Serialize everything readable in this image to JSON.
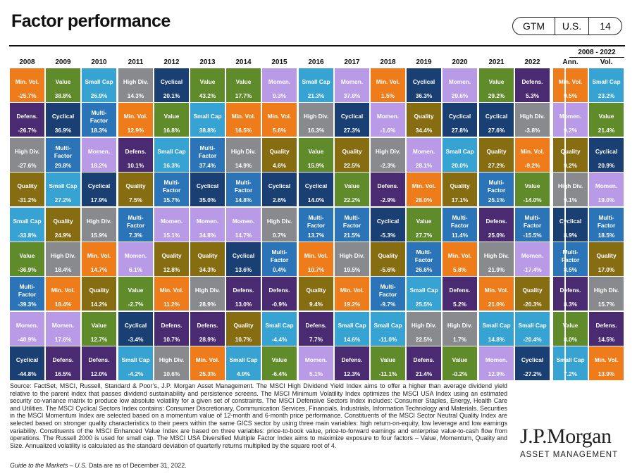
{
  "header": {
    "title": "Factor performance",
    "badge": [
      "GTM",
      "U.S.",
      "14"
    ]
  },
  "palette": {
    "Min. Vol.": "#ee7c1a",
    "Value": "#5f8b2b",
    "Small Cap": "#37a3d3",
    "High Div.": "#898a8d",
    "Cyclical": "#1a3f73",
    "Momen.": "#b99ae6",
    "Defens.": "#4a2a71",
    "Multi-Factor": "#2a74b7",
    "Quality": "#876d12"
  },
  "chart_data": {
    "type": "table",
    "title": "Factor performance",
    "range_label": "2008 - 2022",
    "columns": [
      "2008",
      "2009",
      "2010",
      "2011",
      "2012",
      "2013",
      "2014",
      "2015",
      "2016",
      "2017",
      "2018",
      "2019",
      "2020",
      "2021",
      "2022",
      "Ann.",
      "Vol."
    ],
    "rows": [
      [
        [
          "Min. Vol.",
          "-25.7%"
        ],
        [
          "Value",
          "38.8%"
        ],
        [
          "Small Cap",
          "26.9%"
        ],
        [
          "High Div.",
          "14.3%"
        ],
        [
          "Cyclical",
          "20.1%"
        ],
        [
          "Value",
          "43.2%"
        ],
        [
          "Value",
          "17.7%"
        ],
        [
          "Momen.",
          "9.3%"
        ],
        [
          "Small Cap",
          "21.3%"
        ],
        [
          "Momen.",
          "37.8%"
        ],
        [
          "Min. Vol.",
          "1.5%"
        ],
        [
          "Cyclical",
          "36.3%"
        ],
        [
          "Momen.",
          "29.6%"
        ],
        [
          "Value",
          "29.2%"
        ],
        [
          "Defens.",
          "5.3%"
        ],
        [
          "Min. Vol.",
          "9.5%"
        ],
        [
          "Small Cap",
          "23.2%"
        ]
      ],
      [
        [
          "Defens.",
          "-26.7%"
        ],
        [
          "Cyclical",
          "36.9%"
        ],
        [
          "Multi-Factor",
          "18.3%"
        ],
        [
          "Min. Vol.",
          "12.9%"
        ],
        [
          "Value",
          "16.8%"
        ],
        [
          "Small Cap",
          "38.8%"
        ],
        [
          "Min. Vol.",
          "16.5%"
        ],
        [
          "Min. Vol.",
          "5.6%"
        ],
        [
          "High Div.",
          "16.3%"
        ],
        [
          "Cyclical",
          "27.3%"
        ],
        [
          "Momen.",
          "-1.6%"
        ],
        [
          "Quality",
          "34.4%"
        ],
        [
          "Cyclical",
          "27.8%"
        ],
        [
          "Cyclical",
          "27.6%"
        ],
        [
          "High Div.",
          "-3.8%"
        ],
        [
          "Momen.",
          "9.2%"
        ],
        [
          "Value",
          "21.4%"
        ]
      ],
      [
        [
          "High Div.",
          "-27.6%"
        ],
        [
          "Multi-Factor",
          "29.8%"
        ],
        [
          "Momen.",
          "18.2%"
        ],
        [
          "Defens.",
          "10.1%"
        ],
        [
          "Small Cap",
          "16.3%"
        ],
        [
          "Multi-Factor",
          "37.4%"
        ],
        [
          "High Div.",
          "14.9%"
        ],
        [
          "Quality",
          "4.6%"
        ],
        [
          "Value",
          "15.9%"
        ],
        [
          "Quality",
          "22.5%"
        ],
        [
          "High Div.",
          "-2.3%"
        ],
        [
          "Momen.",
          "28.1%"
        ],
        [
          "Small Cap",
          "20.0%"
        ],
        [
          "Quality",
          "27.2%"
        ],
        [
          "Min. Vol.",
          "-9.2%"
        ],
        [
          "Quality",
          "9.2%"
        ],
        [
          "Cyclical",
          "20.9%"
        ]
      ],
      [
        [
          "Quality",
          "-31.2%"
        ],
        [
          "Small Cap",
          "27.2%"
        ],
        [
          "Cyclical",
          "17.9%"
        ],
        [
          "Quality",
          "7.5%"
        ],
        [
          "Multi-Factor",
          "15.7%"
        ],
        [
          "Cyclical",
          "35.0%"
        ],
        [
          "Multi-Factor",
          "14.8%"
        ],
        [
          "Cyclical",
          "2.6%"
        ],
        [
          "Cyclical",
          "14.0%"
        ],
        [
          "Value",
          "22.2%"
        ],
        [
          "Defens.",
          "-2.9%"
        ],
        [
          "Min. Vol.",
          "28.0%"
        ],
        [
          "Quality",
          "17.1%"
        ],
        [
          "Multi-Factor",
          "25.1%"
        ],
        [
          "Value",
          "-14.0%"
        ],
        [
          "High Div.",
          "9.1%"
        ],
        [
          "Momen.",
          "19.0%"
        ]
      ],
      [
        [
          "Small Cap",
          "-33.8%"
        ],
        [
          "Quality",
          "24.9%"
        ],
        [
          "High Div.",
          "15.9%"
        ],
        [
          "Multi-Factor",
          "7.3%"
        ],
        [
          "Momen.",
          "15.1%"
        ],
        [
          "Momen.",
          "34.8%"
        ],
        [
          "Momen.",
          "14.7%"
        ],
        [
          "High Div.",
          "0.7%"
        ],
        [
          "Multi-Factor",
          "13.7%"
        ],
        [
          "Multi-Factor",
          "21.5%"
        ],
        [
          "Cyclical",
          "-5.3%"
        ],
        [
          "Value",
          "27.7%"
        ],
        [
          "Multi-Factor",
          "11.4%"
        ],
        [
          "Defens.",
          "25.0%"
        ],
        [
          "Multi-Factor",
          "-15.5%"
        ],
        [
          "Cyclical",
          "8.9%"
        ],
        [
          "Multi-Factor",
          "18.5%"
        ]
      ],
      [
        [
          "Value",
          "-36.9%"
        ],
        [
          "High Div.",
          "18.4%"
        ],
        [
          "Min. Vol.",
          "14.7%"
        ],
        [
          "Momen.",
          "6.1%"
        ],
        [
          "Quality",
          "12.8%"
        ],
        [
          "Quality",
          "34.3%"
        ],
        [
          "Cyclical",
          "13.6%"
        ],
        [
          "Multi-Factor",
          "0.4%"
        ],
        [
          "Min. Vol.",
          "10.7%"
        ],
        [
          "High Div.",
          "19.5%"
        ],
        [
          "Quality",
          "-5.6%"
        ],
        [
          "Multi-Factor",
          "26.6%"
        ],
        [
          "Min. Vol.",
          "5.8%"
        ],
        [
          "High Div.",
          "21.9%"
        ],
        [
          "Momen.",
          "-17.4%"
        ],
        [
          "Multi-Factor",
          "8.5%"
        ],
        [
          "Quality",
          "17.0%"
        ]
      ],
      [
        [
          "Multi-Factor",
          "-39.3%"
        ],
        [
          "Min. Vol.",
          "18.4%"
        ],
        [
          "Quality",
          "14.2%"
        ],
        [
          "Value",
          "-2.7%"
        ],
        [
          "Min. Vol.",
          "11.2%"
        ],
        [
          "High Div.",
          "28.9%"
        ],
        [
          "Defens.",
          "13.0%"
        ],
        [
          "Defens.",
          "-0.9%"
        ],
        [
          "Quality",
          "9.4%"
        ],
        [
          "Min. Vol.",
          "19.2%"
        ],
        [
          "Multi-Factor",
          "-9.7%"
        ],
        [
          "Small Cap",
          "25.5%"
        ],
        [
          "Defens.",
          "5.2%"
        ],
        [
          "Min. Vol.",
          "21.0%"
        ],
        [
          "Quality",
          "-20.3%"
        ],
        [
          "Defens.",
          "8.3%"
        ],
        [
          "High Div.",
          "15.7%"
        ]
      ],
      [
        [
          "Momen.",
          "-40.9%"
        ],
        [
          "Momen.",
          "17.6%"
        ],
        [
          "Value",
          "12.7%"
        ],
        [
          "Cyclical",
          "-3.4%"
        ],
        [
          "Defens.",
          "10.7%"
        ],
        [
          "Defens.",
          "28.9%"
        ],
        [
          "Quality",
          "10.7%"
        ],
        [
          "Small Cap",
          "-4.4%"
        ],
        [
          "Defens.",
          "7.7%"
        ],
        [
          "Small Cap",
          "14.6%"
        ],
        [
          "Small Cap",
          "-11.0%"
        ],
        [
          "High Div.",
          "22.5%"
        ],
        [
          "High Div.",
          "1.7%"
        ],
        [
          "Small Cap",
          "14.8%"
        ],
        [
          "Small Cap",
          "-20.4%"
        ],
        [
          "Value",
          "8.0%"
        ],
        [
          "Defens.",
          "14.5%"
        ]
      ],
      [
        [
          "Cyclical",
          "-44.8%"
        ],
        [
          "Defens.",
          "16.5%"
        ],
        [
          "Defens.",
          "12.0%"
        ],
        [
          "Small Cap",
          "-4.2%"
        ],
        [
          "High Div.",
          "10.6%"
        ],
        [
          "Min. Vol.",
          "25.3%"
        ],
        [
          "Small Cap",
          "4.9%"
        ],
        [
          "Value",
          "-6.4%"
        ],
        [
          "Momen.",
          "5.1%"
        ],
        [
          "Defens.",
          "12.3%"
        ],
        [
          "Value",
          "-11.1%"
        ],
        [
          "Defens.",
          "21.4%"
        ],
        [
          "Value",
          "-0.2%"
        ],
        [
          "Momen.",
          "12.9%"
        ],
        [
          "Cyclical",
          "-27.2%"
        ],
        [
          "Small Cap",
          "7.2%"
        ],
        [
          "Min. Vol.",
          "13.9%"
        ]
      ]
    ]
  },
  "footer": {
    "source": "Source: FactSet, MSCI, Russell, Standard & Poor’s, J.P. Morgan Asset Management. The MSCI High Dividend Yield Index aims to offer a higher than average dividend yield relative to the parent index that passes dividend sustainability and persistence screens. The MSCI Minimum Volatility Index optimizes the MSCI USA Index using an estimated security co-variance matrix to produce low absolute volatility for a given set of constraints. The MSCI Defensive Sectors Index includes: Consumer Staples, Energy, Health Care and Utilities. The MSCI Cyclical Sectors Index contains: Consumer Discretionary, Communication Services, Financials, Industrials, Information Technology and Materials. Securities in the MSCI Momentum Index are selected based on a momentum value of 12-month and 6-month price performance. Constituents of the MSCI Sector Neutral Quality Index are selected based on stronger quality characteristics to their peers within the same GICS sector by using three main variables: high return-on-equity, low leverage and low earnings variability. Constituents of the MSCI Enhanced Value Index are based on three variables: price-to-book value, price-to-forward earnings and enterprise value-to-cash flow from operations. The Russell 2000 is used for small cap. The MSCI USA Diversified Multiple Factor Index aims to maximize exposure to four factors – Value, Momentum, Quality and Size. Annualized volatility is calculated as the standard deviation of quarterly returns multiplied by the square root of 4.",
    "guide_italic": "Guide to the Markets – U.S.",
    "guide_rest": " Data are as of December 31, 2022.",
    "logo_top": "J.P.Morgan",
    "logo_bottom": "ASSET MANAGEMENT"
  }
}
